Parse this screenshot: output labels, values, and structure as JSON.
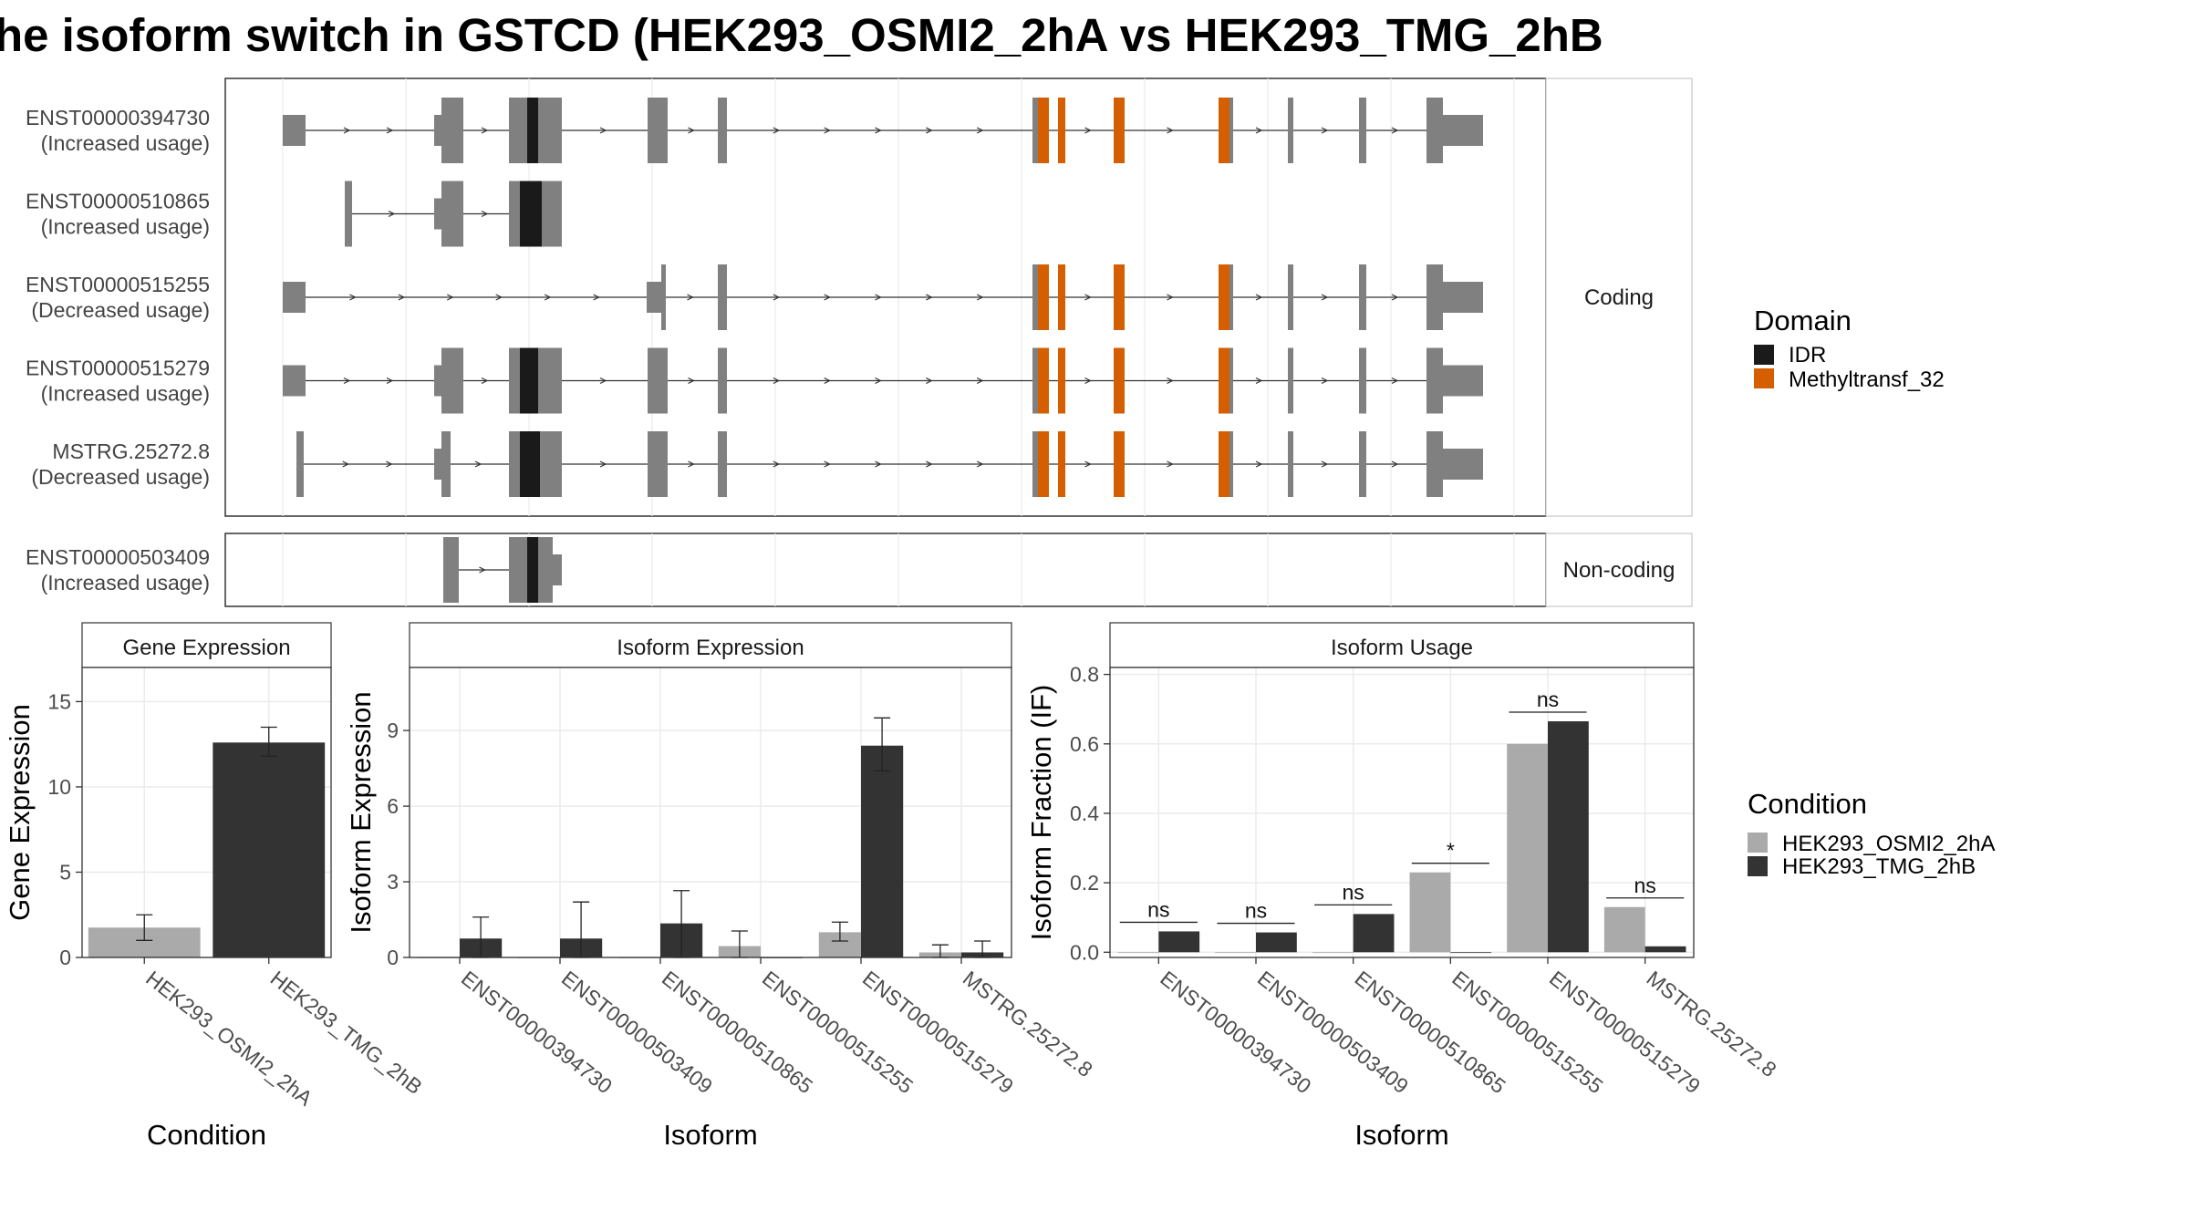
{
  "title": "he isoform switch in GSTCD (HEK293_OSMI2_2hA vs HEK293_TMG_2hB",
  "colors": {
    "exon": "#808080",
    "idr": "#1a1a1a",
    "methyltransf": "#d55e00",
    "cond_a": "#aaaaaa",
    "cond_b": "#333333",
    "strip": "#f2f2f2"
  },
  "structure": {
    "coding_label": "Coding",
    "noncoding_label": "Non-coding",
    "coding_transcripts": [
      {
        "id": "ENST00000394730",
        "usage": "(Increased usage)"
      },
      {
        "id": "ENST00000510865",
        "usage": "(Increased usage)"
      },
      {
        "id": "ENST00000515255",
        "usage": "(Decreased usage)"
      },
      {
        "id": "ENST00000515279",
        "usage": "(Increased usage)"
      },
      {
        "id": "MSTRG.25272.8",
        "usage": "(Decreased usage)"
      }
    ],
    "noncoding_transcripts": [
      {
        "id": "ENST00000503409",
        "usage": "(Increased usage)"
      }
    ]
  },
  "legends": {
    "domain_title": "Domain",
    "domain_items": [
      "IDR",
      "Methyltransf_32"
    ],
    "condition_title": "Condition",
    "condition_items": [
      "HEK293_OSMI2_2hA",
      "HEK293_TMG_2hB"
    ]
  },
  "chart_data": [
    {
      "type": "bar",
      "title": "Gene Expression",
      "xlabel": "Condition",
      "ylabel": "Gene Expression",
      "categories": [
        "HEK293_OSMI2_2hA",
        "HEK293_TMG_2hB"
      ],
      "values": [
        1.75,
        12.6
      ],
      "error_low": [
        1.0,
        11.8
      ],
      "error_high": [
        2.5,
        13.5
      ],
      "ylim": [
        0,
        17
      ],
      "yticks": [
        0,
        5,
        10,
        15
      ]
    },
    {
      "type": "bar",
      "title": "Isoform Expression",
      "xlabel": "Isoform",
      "ylabel": "Isoform Expression",
      "categories": [
        "ENST00000394730",
        "ENST00000503409",
        "ENST00000510865",
        "ENST00000515255",
        "ENST00000515279",
        "MSTRG.25272.8"
      ],
      "series": [
        {
          "name": "HEK293_OSMI2_2hA",
          "values": [
            0.0,
            0.0,
            0.0,
            0.45,
            1.0,
            0.2
          ],
          "error_low": [
            0.0,
            0.0,
            0.0,
            0.0,
            0.65,
            0.0
          ],
          "error_high": [
            0.0,
            0.0,
            0.0,
            1.05,
            1.4,
            0.5
          ]
        },
        {
          "name": "HEK293_TMG_2hB",
          "values": [
            0.75,
            0.75,
            1.35,
            0.0,
            8.4,
            0.2
          ],
          "error_low": [
            0.0,
            0.0,
            0.0,
            0.0,
            7.4,
            0.0
          ],
          "error_high": [
            1.6,
            2.2,
            2.65,
            0.0,
            9.5,
            0.65
          ]
        }
      ],
      "ylim": [
        0,
        11.5
      ],
      "yticks": [
        0,
        3,
        6,
        9
      ]
    },
    {
      "type": "bar",
      "title": "Isoform Usage",
      "xlabel": "Isoform",
      "ylabel": "Isoform Fraction (IF)",
      "categories": [
        "ENST00000394730",
        "ENST00000503409",
        "ENST00000510865",
        "ENST00000515255",
        "ENST00000515279",
        "MSTRG.25272.8"
      ],
      "series": [
        {
          "name": "HEK293_OSMI2_2hA",
          "values": [
            0.0,
            0.0,
            0.0,
            0.23,
            0.6,
            0.13
          ]
        },
        {
          "name": "HEK293_TMG_2hB",
          "values": [
            0.06,
            0.057,
            0.11,
            0.0,
            0.665,
            0.017
          ]
        }
      ],
      "significance": [
        "ns",
        "ns",
        "ns",
        "*",
        "ns",
        "ns"
      ],
      "ylim": [
        -0.015,
        0.82
      ],
      "yticks": [
        0.0,
        0.2,
        0.4,
        0.6,
        0.8
      ],
      "ytick_labels": [
        "0.0",
        "0.2",
        "0.4",
        "0.6",
        "0.8"
      ]
    }
  ]
}
